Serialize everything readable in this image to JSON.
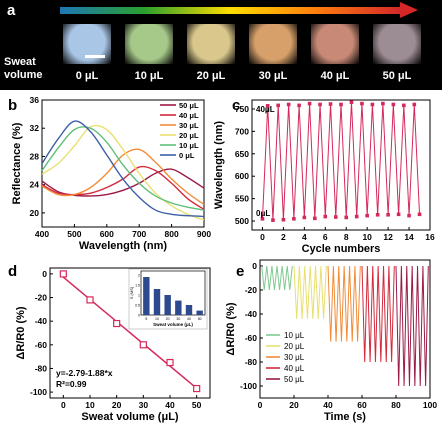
{
  "panel_labels": [
    "a",
    "b",
    "c",
    "d",
    "e"
  ],
  "panel_a": {
    "row_label": "Sweat\nvolume",
    "swatches": [
      {
        "label": "0 μL",
        "color": "#a9c6e6"
      },
      {
        "label": "10 μL",
        "color": "#a6c98a"
      },
      {
        "label": "20 μL",
        "color": "#d9c78c"
      },
      {
        "label": "30 μL",
        "color": "#d7a06a"
      },
      {
        "label": "40 μL",
        "color": "#c88a76"
      },
      {
        "label": "50 μL",
        "color": "#9c8c93"
      }
    ],
    "gradient_colors": [
      "#1f77b4",
      "#2ca02c",
      "#ffdd00",
      "#ff7f0e",
      "#d62728"
    ]
  },
  "chart_data": [
    {
      "panel": "b",
      "type": "line",
      "xlabel": "Wavelength (nm)",
      "ylabel": "Reflectance (%)",
      "xlim": [
        400,
        900
      ],
      "ylim": [
        18,
        36
      ],
      "xticks": [
        400,
        500,
        600,
        700,
        800,
        900
      ],
      "yticks": [
        20,
        24,
        28,
        32,
        36
      ],
      "legend_position": "top-right",
      "x": [
        400,
        450,
        500,
        550,
        600,
        650,
        700,
        750,
        800,
        850,
        900
      ],
      "series": [
        {
          "name": "50 μL",
          "color": "#9b1b48",
          "values": [
            24.5,
            23.0,
            22.5,
            22.4,
            22.6,
            23.2,
            24.2,
            25.6,
            26.2,
            25.0,
            23.5
          ]
        },
        {
          "name": "40 μL",
          "color": "#d42a3c",
          "values": [
            24.0,
            22.8,
            22.6,
            22.8,
            23.6,
            24.8,
            26.5,
            26.0,
            24.2,
            22.0,
            20.5
          ]
        },
        {
          "name": "30 μL",
          "color": "#f28c38",
          "values": [
            23.8,
            22.6,
            22.6,
            23.6,
            25.6,
            28.2,
            29.0,
            27.2,
            24.8,
            22.8,
            21.2
          ]
        },
        {
          "name": "20 μL",
          "color": "#e8e070",
          "values": [
            25.5,
            27.0,
            29.5,
            32.2,
            31.8,
            29.0,
            25.6,
            22.8,
            21.0,
            19.8,
            19.0
          ]
        },
        {
          "name": "10 μL",
          "color": "#5fbf7a",
          "values": [
            26.0,
            29.2,
            31.8,
            32.0,
            30.0,
            26.8,
            24.2,
            22.4,
            21.4,
            20.8,
            20.4
          ]
        },
        {
          "name": "0 μL",
          "color": "#3f5fa8",
          "values": [
            27.0,
            30.5,
            33.0,
            31.5,
            28.2,
            24.8,
            22.2,
            20.4,
            19.8,
            19.6,
            19.5
          ]
        }
      ]
    },
    {
      "panel": "c",
      "type": "line",
      "xlabel": "Cycle numbers",
      "ylabel": "Wavelength (nm)",
      "xlim": [
        -1,
        16
      ],
      "ylim": [
        480,
        770
      ],
      "xticks": [
        0,
        2,
        4,
        6,
        8,
        10,
        12,
        14,
        16
      ],
      "yticks": [
        500,
        550,
        600,
        650,
        700,
        750
      ],
      "color": "#d42a5a",
      "annotations": [
        "40μL",
        "0μL"
      ],
      "x": [
        0,
        0.5,
        1,
        1.5,
        2,
        2.5,
        3,
        3.5,
        4,
        4.5,
        5,
        5.5,
        6,
        6.5,
        7,
        7.5,
        8,
        8.5,
        9,
        9.5,
        10,
        10.5,
        11,
        11.5,
        12,
        12.5,
        13,
        13.5,
        14,
        14.5,
        15
      ],
      "values": [
        505,
        757,
        502,
        758,
        503,
        760,
        505,
        758,
        508,
        762,
        506,
        760,
        510,
        761,
        509,
        760,
        508,
        765,
        510,
        762,
        512,
        760,
        514,
        762,
        514,
        760,
        515,
        758,
        512,
        760,
        515
      ]
    },
    {
      "panel": "d",
      "type": "scatter",
      "xlabel": "Sweat volume (μL)",
      "ylabel": "ΔR/R0 (%)",
      "xlim": [
        -5,
        55
      ],
      "ylim": [
        -105,
        5
      ],
      "xticks": [
        0,
        10,
        20,
        30,
        40,
        50
      ],
      "yticks": [
        0,
        -20,
        -40,
        -60,
        -80,
        -100
      ],
      "x": [
        0,
        10,
        20,
        30,
        40,
        50
      ],
      "values": [
        0,
        -22,
        -42,
        -60,
        -75,
        -97
      ],
      "fit_line": [
        -2.79,
        -96.79
      ],
      "annotations": [
        "y=-2.79-1.88*x",
        "R²=0.99"
      ],
      "marker_color": "#d42a5a",
      "inset": {
        "type": "bar",
        "xlabel": "Sweat volume (μL)",
        "ylabel": "S (MS)",
        "ylim": [
          0,
          2.2
        ],
        "yticks": [
          0,
          0.5,
          1.0,
          1.5,
          2.0
        ],
        "categories": [
          "5",
          "10",
          "20",
          "30",
          "40",
          "50"
        ],
        "values": [
          1.9,
          1.3,
          1.0,
          0.72,
          0.5,
          0.22
        ],
        "color": "#2e4a8e"
      }
    },
    {
      "panel": "e",
      "type": "line",
      "xlabel": "Time (s)",
      "ylabel": "ΔR/R0 (%)",
      "xlim": [
        0,
        100
      ],
      "ylim": [
        -110,
        5
      ],
      "xticks": [
        0,
        20,
        40,
        60,
        80,
        100
      ],
      "yticks": [
        0,
        -20,
        -40,
        -60,
        -80,
        -100
      ],
      "legend_position": "bottom-left",
      "series": [
        {
          "name": "10 μL",
          "color": "#7fc98f",
          "t_start": 1,
          "t_end": 19,
          "low": -20,
          "cycles": 6
        },
        {
          "name": "20 μL",
          "color": "#e8e070",
          "t_start": 20,
          "t_end": 39,
          "low": -44,
          "cycles": 6
        },
        {
          "name": "30 μL",
          "color": "#f28c38",
          "t_start": 40,
          "t_end": 59,
          "low": -63,
          "cycles": 6
        },
        {
          "name": "40 μL",
          "color": "#d42a3c",
          "t_start": 60,
          "t_end": 79,
          "low": -80,
          "cycles": 6
        },
        {
          "name": "50 μL",
          "color": "#9b1b48",
          "t_start": 80,
          "t_end": 99,
          "low": -100,
          "cycles": 6
        }
      ]
    }
  ]
}
